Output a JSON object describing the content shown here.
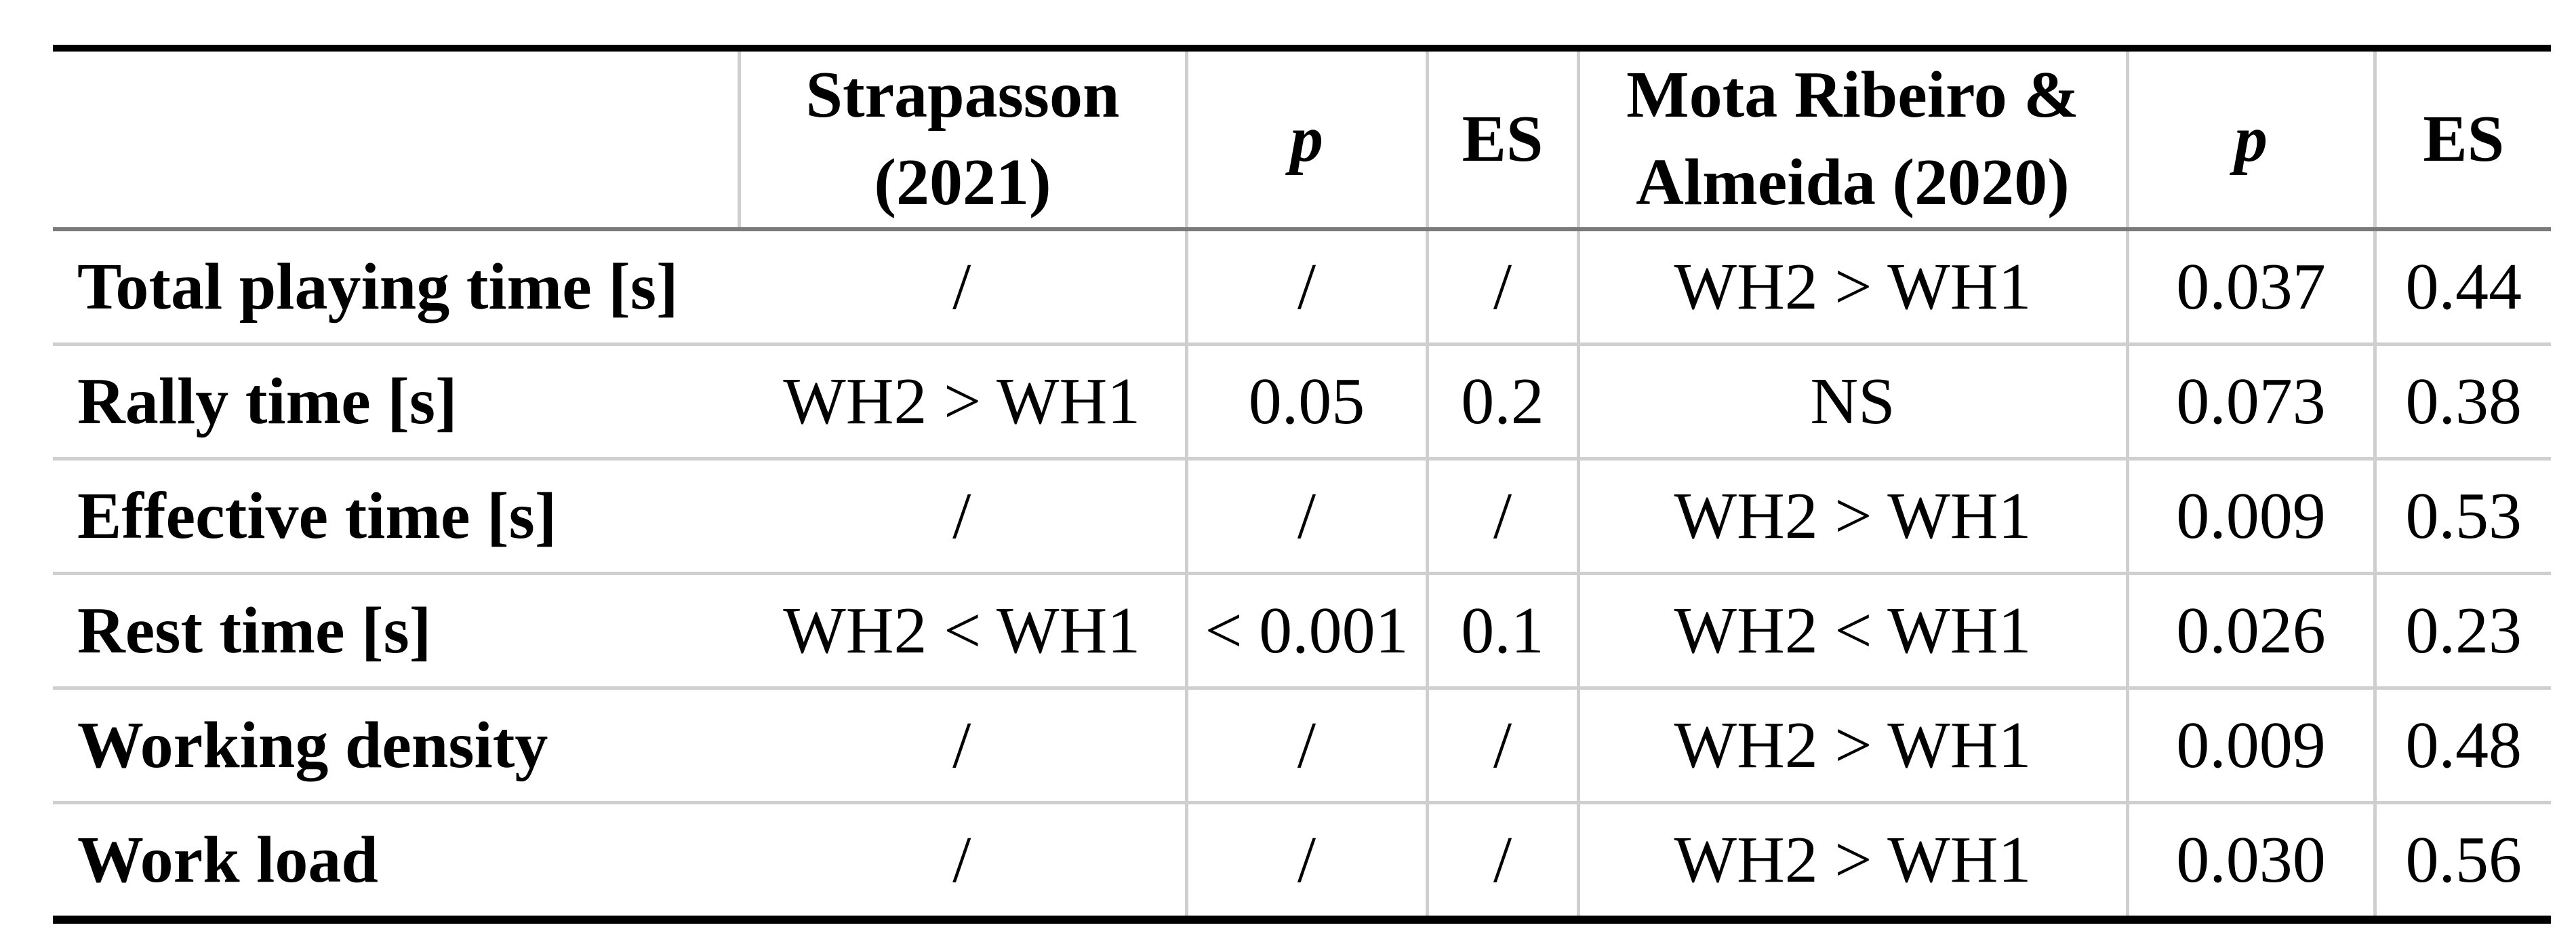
{
  "table": {
    "title_semantic": "comparison-of-time-motion-variables-with-literature",
    "header": {
      "corner": "",
      "study1": [
        "Strapasson",
        "(2021)"
      ],
      "p1": "p",
      "es1": "ES",
      "study2": [
        "Mota Ribeiro &",
        "Almeida (2020)"
      ],
      "p2": "p",
      "es2": "ES"
    },
    "rows": [
      {
        "label": "Total playing time [s]",
        "study1": "/",
        "p1": "/",
        "es1": "/",
        "study2": "WH2 > WH1",
        "p2": "0.037",
        "es2": "0.44"
      },
      {
        "label": "Rally time [s]",
        "study1": "WH2 > WH1",
        "p1": "0.05",
        "es1": "0.2",
        "study2": "NS",
        "p2": "0.073",
        "es2": "0.38"
      },
      {
        "label": "Effective time [s]",
        "study1": "/",
        "p1": "/",
        "es1": "/",
        "study2": "WH2 > WH1",
        "p2": "0.009",
        "es2": "0.53"
      },
      {
        "label": "Rest time [s]",
        "study1": "WH2 < WH1",
        "p1": "< 0.001",
        "es1": "0.1",
        "study2": "WH2 < WH1",
        "p2": "0.026",
        "es2": "0.23"
      },
      {
        "label": "Working density",
        "study1": "/",
        "p1": "/",
        "es1": "/",
        "study2": "WH2 > WH1",
        "p2": "0.009",
        "es2": "0.48"
      },
      {
        "label": "Work load",
        "study1": "/",
        "p1": "/",
        "es1": "/",
        "study2": "WH2 > WH1",
        "p2": "0.030",
        "es2": "0.56"
      }
    ],
    "colors": {
      "top_bottom_rule": "#000000",
      "header_separator": "#7a7a7a",
      "grid_line": "#cfcfcf",
      "text": "#000000",
      "background": "#ffffff"
    }
  }
}
